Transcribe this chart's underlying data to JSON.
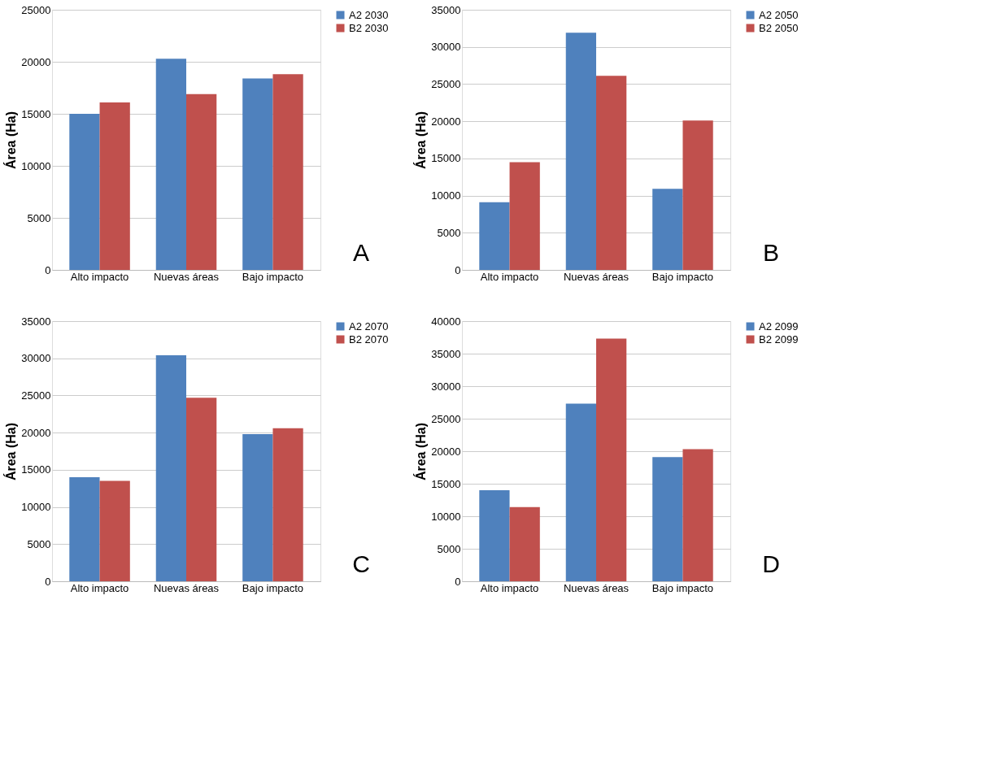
{
  "chart_data": [
    {
      "type": "bar",
      "ylabel": "Área (Ha)",
      "categories": [
        "Alto impacto",
        "Nuevas áreas",
        "Bajo impacto"
      ],
      "ylim": [
        0,
        25000
      ],
      "yticks": [
        0,
        5000,
        10000,
        15000,
        20000,
        25000
      ],
      "grid": "y",
      "legend": "right",
      "annotations": [
        "A"
      ],
      "series": [
        {
          "name": "A2 2030",
          "color": "#4f81bd",
          "values": [
            15000,
            20300,
            18400
          ]
        },
        {
          "name": "B2 2030",
          "color": "#c0504d",
          "values": [
            16100,
            16900,
            18800
          ]
        }
      ]
    },
    {
      "type": "bar",
      "ylabel": "Área (Ha)",
      "categories": [
        "Alto impacto",
        "Nuevas áreas",
        "Bajo impacto"
      ],
      "ylim": [
        0,
        35000
      ],
      "yticks": [
        0,
        5000,
        10000,
        15000,
        20000,
        25000,
        30000,
        35000
      ],
      "grid": "y",
      "legend": "right",
      "annotations": [
        "B"
      ],
      "series": [
        {
          "name": "A2 2050",
          "color": "#4f81bd",
          "values": [
            9100,
            31900,
            10900
          ]
        },
        {
          "name": "B2 2050",
          "color": "#c0504d",
          "values": [
            14500,
            26100,
            20100
          ]
        }
      ]
    },
    {
      "type": "bar",
      "ylabel": "Área (Ha)",
      "categories": [
        "Alto impacto",
        "Nuevas áreas",
        "Bajo impacto"
      ],
      "ylim": [
        0,
        35000
      ],
      "yticks": [
        0,
        5000,
        10000,
        15000,
        20000,
        25000,
        30000,
        35000
      ],
      "grid": "y",
      "legend": "right",
      "annotations": [
        "C"
      ],
      "series": [
        {
          "name": "A2 2070",
          "color": "#4f81bd",
          "values": [
            14000,
            30400,
            19800
          ]
        },
        {
          "name": "B2 2070",
          "color": "#c0504d",
          "values": [
            13500,
            24700,
            20600
          ]
        }
      ]
    },
    {
      "type": "bar",
      "ylabel": "Área (Ha)",
      "categories": [
        "Alto impacto",
        "Nuevas áreas",
        "Bajo impacto"
      ],
      "ylim": [
        0,
        40000
      ],
      "yticks": [
        0,
        5000,
        10000,
        15000,
        20000,
        25000,
        30000,
        35000,
        40000
      ],
      "grid": "y",
      "legend": "right",
      "annotations": [
        "D"
      ],
      "series": [
        {
          "name": "A2 2099",
          "color": "#4f81bd",
          "values": [
            14000,
            27300,
            19100
          ]
        },
        {
          "name": "B2 2099",
          "color": "#c0504d",
          "values": [
            11400,
            37300,
            20300
          ]
        }
      ]
    }
  ]
}
